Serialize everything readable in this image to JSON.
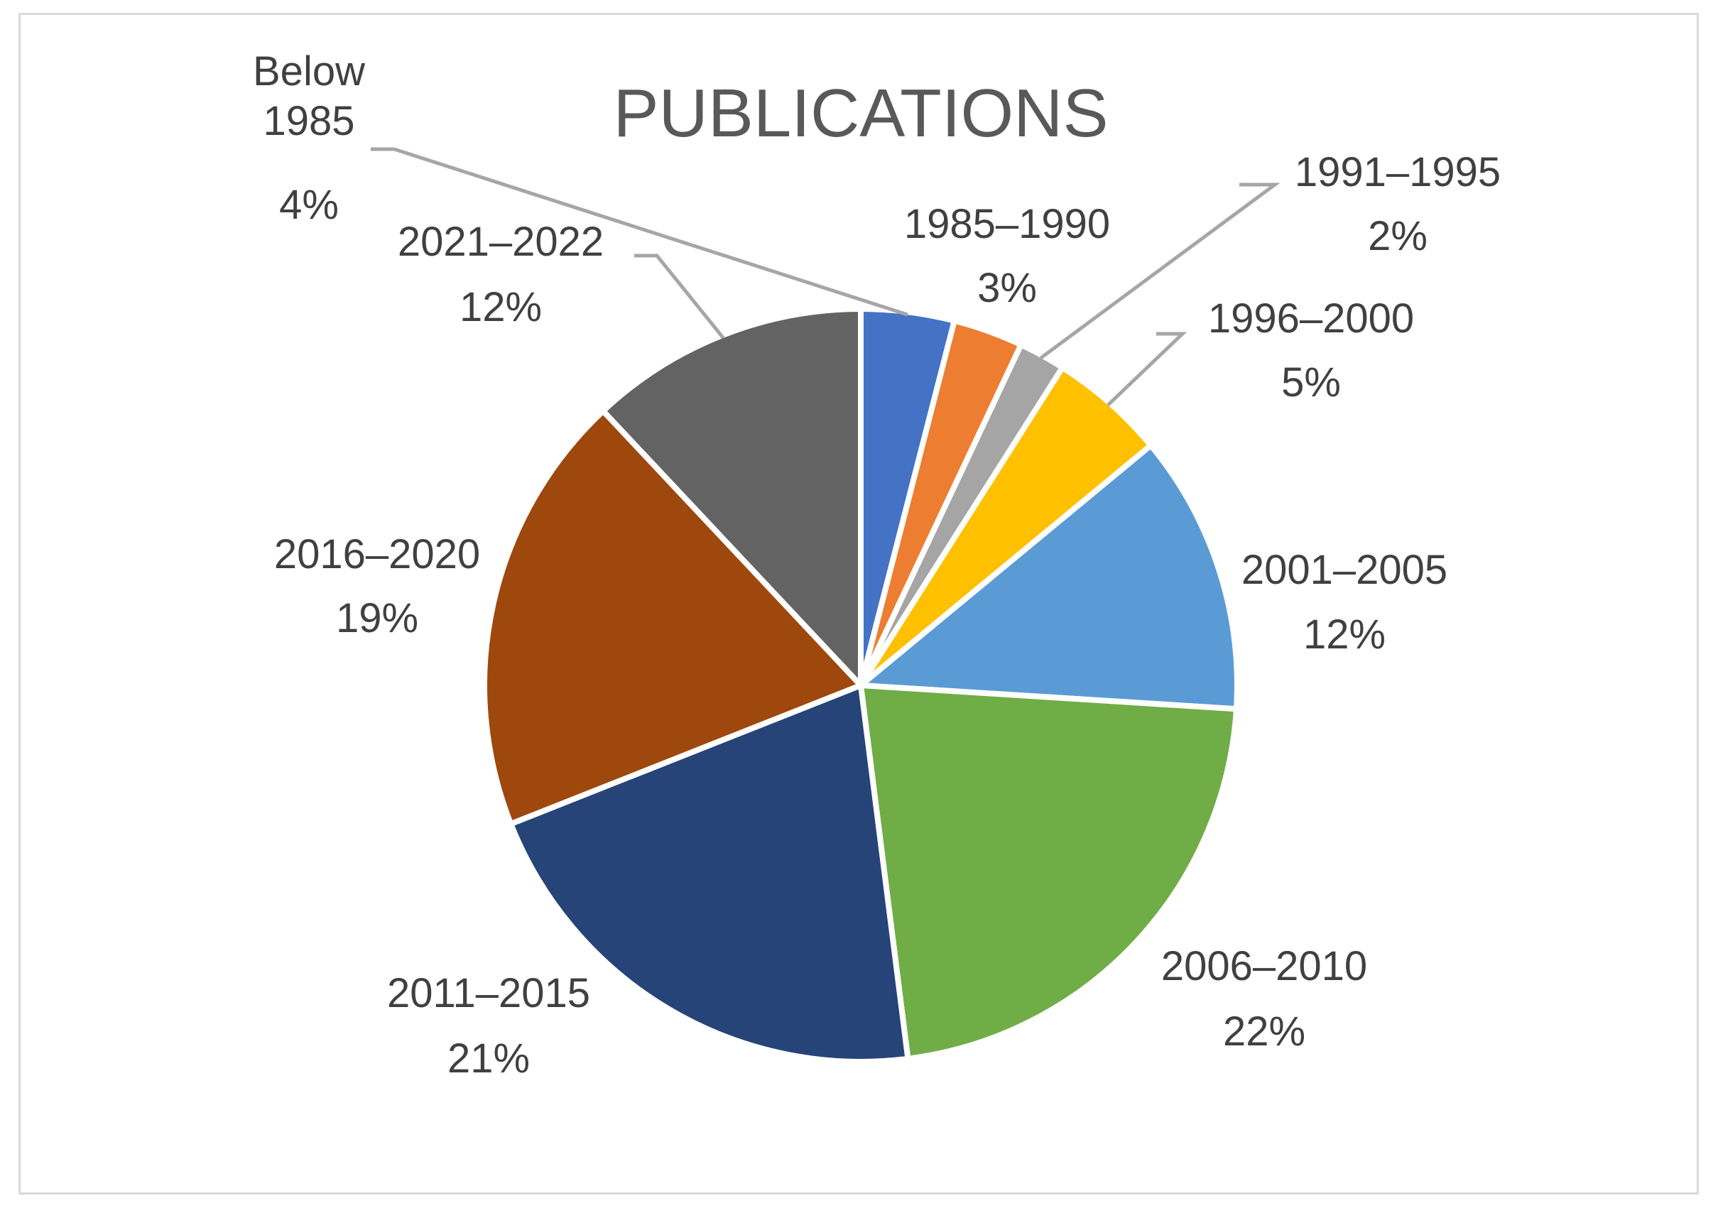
{
  "chart_data": {
    "type": "pie",
    "title": "PUBLICATIONS",
    "slices": [
      {
        "label": "Below 1985",
        "percent": "4%",
        "value": 4,
        "color": "#4472c4"
      },
      {
        "label": "1985–1990",
        "percent": "3%",
        "value": 3,
        "color": "#ed7d31"
      },
      {
        "label": "1991–1995",
        "percent": "2%",
        "value": 2,
        "color": "#a5a5a5"
      },
      {
        "label": "1996–2000",
        "percent": "5%",
        "value": 5,
        "color": "#ffc000"
      },
      {
        "label": "2001–2005",
        "percent": "12%",
        "value": 12,
        "color": "#5b9bd5"
      },
      {
        "label": "2006–2010",
        "percent": "22%",
        "value": 22,
        "color": "#70ad47"
      },
      {
        "label": "2011–2015",
        "percent": "21%",
        "value": 21,
        "color": "#264478"
      },
      {
        "label": "2016–2020",
        "percent": "19%",
        "value": 19,
        "color": "#9e480e"
      },
      {
        "label": "2021–2022",
        "percent": "12%",
        "value": 12,
        "color": "#636363"
      }
    ],
    "legend": "none",
    "leader_line_color": "#a6a6a6"
  }
}
